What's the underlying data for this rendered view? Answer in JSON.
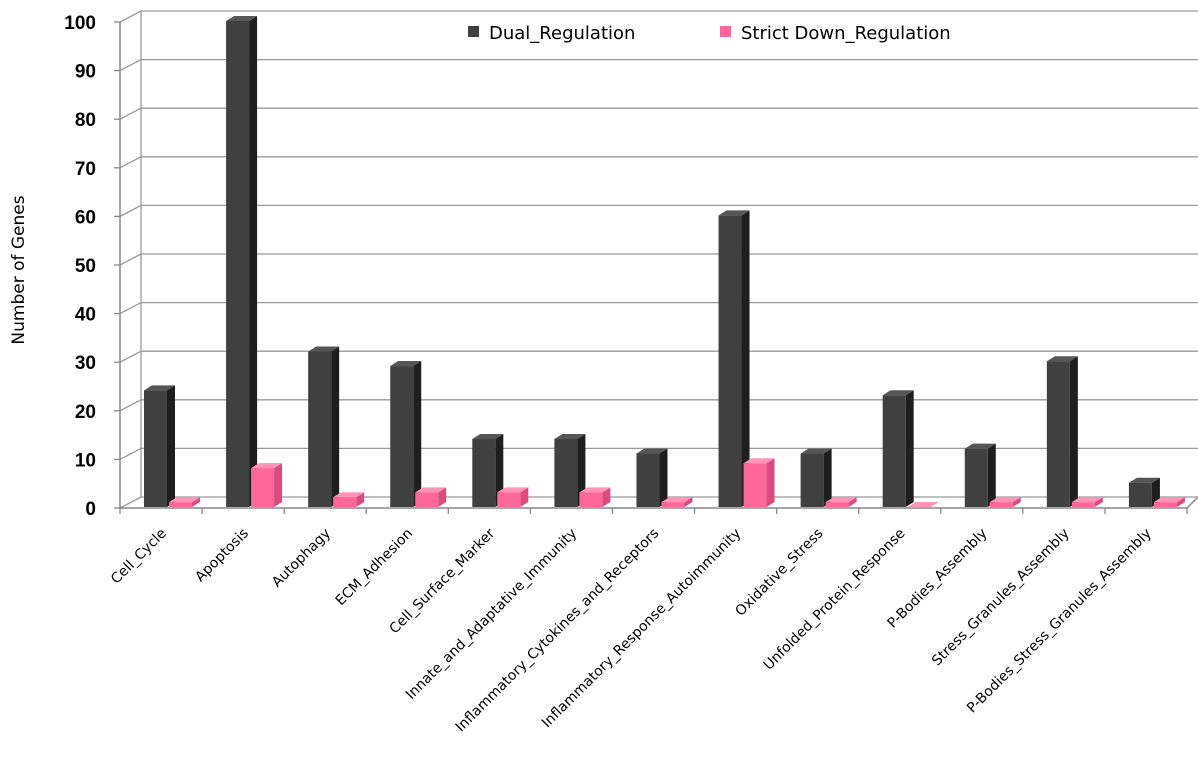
{
  "chart_data": {
    "type": "bar",
    "ylabel": "Number of Genes",
    "ylim": [
      0,
      100
    ],
    "yticks": [
      0,
      10,
      20,
      30,
      40,
      50,
      60,
      70,
      80,
      90,
      100
    ],
    "categories": [
      "Cell_Cycle",
      "Apoptosis",
      "Autophagy",
      "ECM_Adhesion",
      "Cell_Surface_Marker",
      "Innate_and_Adaptative_Immunity",
      "Inflammatory_Cytokines_and_Receptors",
      "Inflammatory_Response_Autoimmunity",
      "Oxidative_Stress",
      "Unfolded_Protein_Response",
      "P-Bodies_Assembly",
      "Stress_Granules_Assembly",
      "P-Bodies_Stress_Granules_Assembly"
    ],
    "series": [
      {
        "name": "Dual_Regulation",
        "color": "#404040",
        "values": [
          24,
          100,
          32,
          29,
          14,
          14,
          11,
          60,
          11,
          23,
          12,
          30,
          5
        ]
      },
      {
        "name": "Strict Down_Regulation",
        "color": "#ff6699",
        "values": [
          1,
          8,
          2,
          3,
          3,
          3,
          1,
          9,
          1,
          0,
          1,
          1,
          1
        ]
      }
    ],
    "grid": true,
    "legend": "top"
  }
}
